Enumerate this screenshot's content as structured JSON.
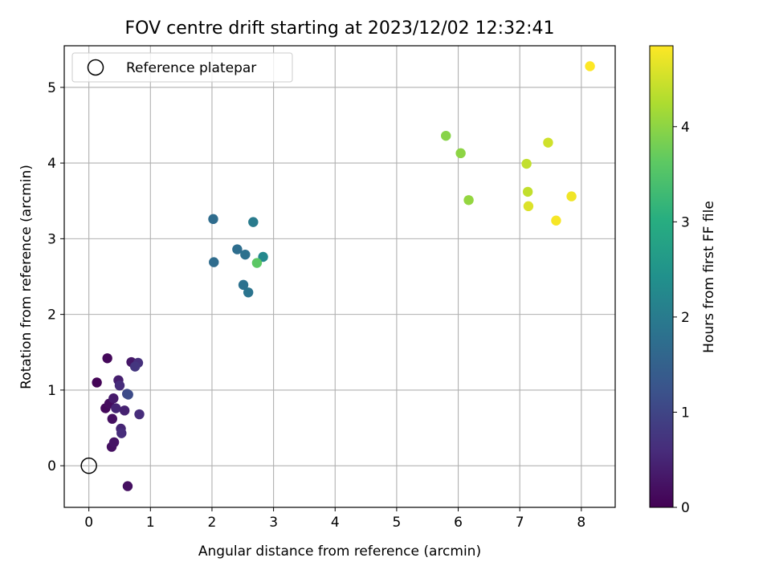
{
  "chart_data": {
    "type": "scatter",
    "title": "FOV centre drift starting at 2023/12/02 12:32:41",
    "xlabel": "Angular distance from reference (arcmin)",
    "ylabel": "Rotation from reference (arcmin)",
    "xlim": [
      -0.4,
      8.55
    ],
    "ylim": [
      -0.55,
      5.55
    ],
    "xticks": [
      0,
      1,
      2,
      3,
      4,
      5,
      6,
      7,
      8
    ],
    "yticks": [
      0,
      1,
      2,
      3,
      4,
      5
    ],
    "grid": true,
    "legend": {
      "placement": "upper-left",
      "entries": [
        "Reference platepar"
      ]
    },
    "reference_point": {
      "label": "Reference platepar",
      "x": 0.0,
      "y": 0.0
    },
    "colorbar": {
      "label": "Hours from first FF file",
      "min": 0,
      "max": 4.85,
      "ticks": [
        0,
        1,
        2,
        3,
        4
      ],
      "colormap": "viridis"
    },
    "points": [
      {
        "x": 0.13,
        "y": 1.1,
        "c": 0.05
      },
      {
        "x": 0.3,
        "y": 1.42,
        "c": 0.1
      },
      {
        "x": 0.27,
        "y": 0.76,
        "c": 0.1
      },
      {
        "x": 0.33,
        "y": 0.82,
        "c": 0.15
      },
      {
        "x": 0.38,
        "y": 0.62,
        "c": 0.2
      },
      {
        "x": 0.37,
        "y": 0.25,
        "c": 0.2
      },
      {
        "x": 0.41,
        "y": 0.31,
        "c": 0.25
      },
      {
        "x": 0.63,
        "y": -0.27,
        "c": 0.2
      },
      {
        "x": 0.69,
        "y": 1.37,
        "c": 0.3
      },
      {
        "x": 0.4,
        "y": 0.89,
        "c": 0.35
      },
      {
        "x": 0.48,
        "y": 1.13,
        "c": 0.4
      },
      {
        "x": 0.44,
        "y": 0.76,
        "c": 0.5
      },
      {
        "x": 0.52,
        "y": 0.49,
        "c": 0.5
      },
      {
        "x": 0.58,
        "y": 0.73,
        "c": 0.45
      },
      {
        "x": 0.5,
        "y": 1.06,
        "c": 0.6
      },
      {
        "x": 0.53,
        "y": 0.43,
        "c": 0.6
      },
      {
        "x": 0.82,
        "y": 0.68,
        "c": 0.6
      },
      {
        "x": 0.8,
        "y": 1.36,
        "c": 0.65
      },
      {
        "x": 0.75,
        "y": 1.31,
        "c": 0.75
      },
      {
        "x": 0.62,
        "y": 0.95,
        "c": 1.05
      },
      {
        "x": 0.64,
        "y": 0.94,
        "c": 1.1
      },
      {
        "x": 2.02,
        "y": 3.26,
        "c": 1.7
      },
      {
        "x": 2.03,
        "y": 2.69,
        "c": 1.7
      },
      {
        "x": 2.41,
        "y": 2.86,
        "c": 1.75
      },
      {
        "x": 2.54,
        "y": 2.79,
        "c": 1.8
      },
      {
        "x": 2.51,
        "y": 2.39,
        "c": 1.8
      },
      {
        "x": 2.59,
        "y": 2.29,
        "c": 1.85
      },
      {
        "x": 2.67,
        "y": 3.22,
        "c": 2.0
      },
      {
        "x": 2.83,
        "y": 2.76,
        "c": 2.25
      },
      {
        "x": 2.73,
        "y": 2.68,
        "c": 3.6
      },
      {
        "x": 5.8,
        "y": 4.36,
        "c": 3.95
      },
      {
        "x": 6.04,
        "y": 4.13,
        "c": 4.0
      },
      {
        "x": 6.17,
        "y": 3.51,
        "c": 4.05
      },
      {
        "x": 7.11,
        "y": 3.99,
        "c": 4.4
      },
      {
        "x": 7.13,
        "y": 3.62,
        "c": 4.4
      },
      {
        "x": 7.14,
        "y": 3.43,
        "c": 4.6
      },
      {
        "x": 7.46,
        "y": 4.27,
        "c": 4.5
      },
      {
        "x": 7.84,
        "y": 3.56,
        "c": 4.75
      },
      {
        "x": 7.59,
        "y": 3.24,
        "c": 4.8
      },
      {
        "x": 8.14,
        "y": 5.28,
        "c": 4.85
      }
    ]
  }
}
